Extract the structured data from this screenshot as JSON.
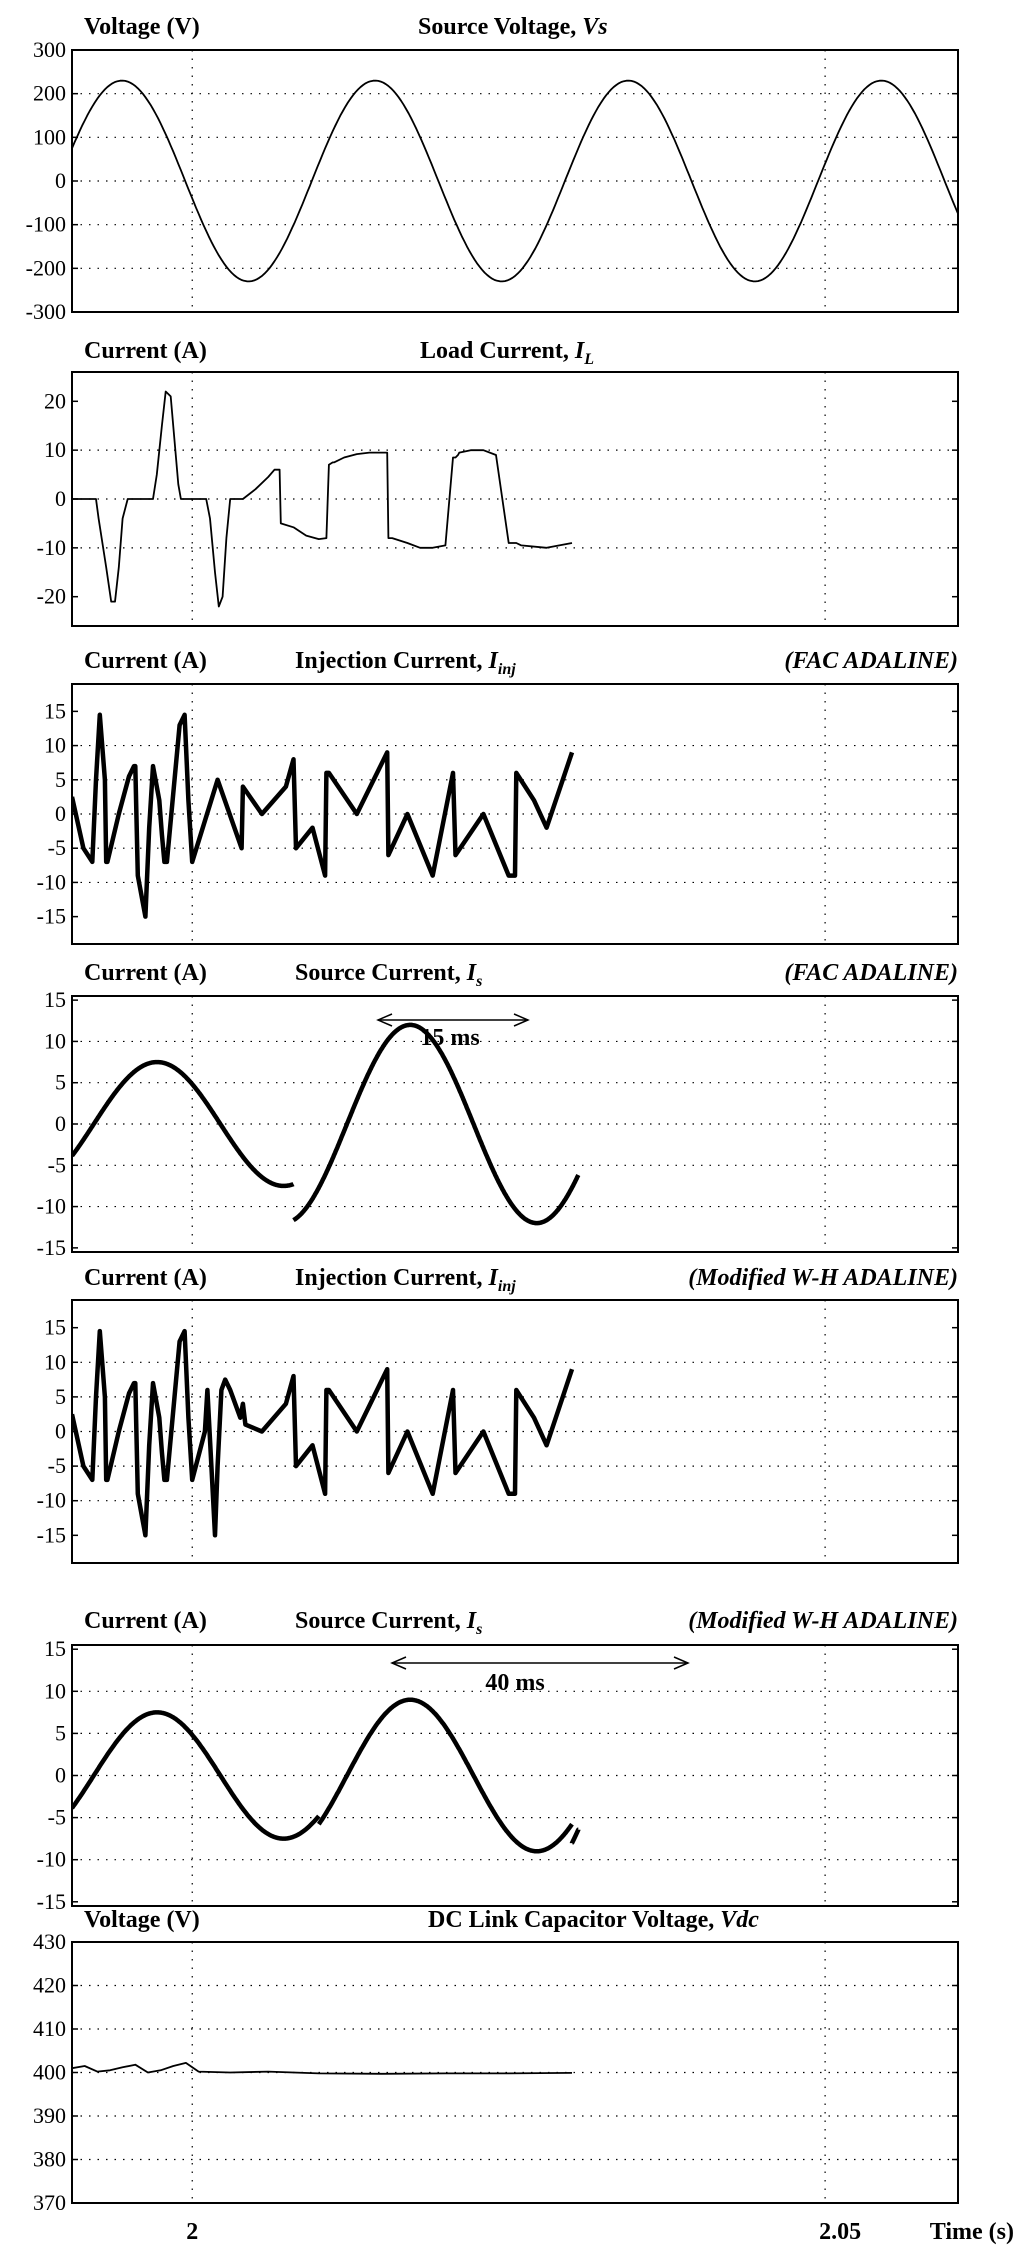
{
  "chart_data": [
    {
      "type": "line",
      "ylabel": "Voltage (V)",
      "title": "Source Voltage, ",
      "title_symbol": "Vs",
      "title_sub": "",
      "method": "",
      "yticks": [
        "300",
        "200",
        "100",
        "0",
        "-100",
        "-200",
        "-300"
      ],
      "ylim": [
        -300,
        300
      ],
      "xlim": [
        1.9905,
        2.0605
      ],
      "x_grid": [
        2.0,
        2.05
      ],
      "series": [
        {
          "x": [
            1.9905,
            2.0905
          ],
          "sine": {
            "amplitude": 230,
            "freq_hz": 50,
            "phase_deg": 190
          }
        }
      ]
    },
    {
      "type": "line",
      "ylabel": "Current (A)",
      "title": "Load Current, ",
      "title_symbol": "I",
      "title_sub": "L",
      "method": "",
      "yticks": [
        "20",
        "10",
        "0",
        "-10",
        "-20"
      ],
      "ylim": [
        -26,
        26
      ],
      "xlim": [
        1.9905,
        2.0605
      ],
      "x_grid": [
        2.0,
        2.05
      ],
      "series": [
        {
          "x": [
            1.9905,
            1.9924,
            1.9926,
            1.9932,
            1.9936,
            1.9939,
            1.9942,
            1.9945,
            1.9949,
            1.9969,
            1.9972,
            1.9976,
            1.9979,
            1.9983,
            1.9986,
            1.9989,
            1.9991,
            2.0011,
            2.0014,
            2.0018,
            2.0021,
            2.0024,
            2.0027,
            2.003,
            2.004,
            2.005,
            2.006,
            2.0065,
            2.0067,
            2.0069,
            2.007,
            2.008,
            2.009,
            2.01,
            2.0106,
            2.0108,
            2.0111,
            2.0112,
            2.012,
            2.013,
            2.014,
            2.015,
            2.0154,
            2.0155,
            2.0158,
            2.017,
            2.018,
            2.019,
            2.02,
            2.0206,
            2.0208,
            2.021,
            2.0211,
            2.022,
            2.023,
            2.024,
            2.025,
            2.0255,
            2.0256,
            2.026,
            2.028,
            2.03
          ],
          "y": [
            0,
            0,
            -4,
            -14,
            -21,
            -21,
            -14,
            -4,
            0,
            0,
            5,
            15,
            22,
            21,
            12,
            3,
            0,
            0,
            -4,
            -15,
            -22,
            -20,
            -8,
            0,
            0,
            2,
            4.5,
            6,
            6,
            6,
            -5,
            -5.8,
            -7.5,
            -8.2,
            -8,
            7,
            7.5,
            7.5,
            8.5,
            9.2,
            9.5,
            9.5,
            9.5,
            -8,
            -8,
            -9,
            -10,
            -10,
            -9.5,
            8.5,
            8.5,
            9,
            9.5,
            10,
            10,
            9,
            -9,
            -9,
            -9,
            -9.5,
            -10,
            -9
          ]
        }
      ]
    },
    {
      "type": "line",
      "ylabel": "Current (A)",
      "title": "Injection Current, ",
      "title_symbol": "I",
      "title_sub": "inj",
      "method": "(FAC ADALINE)",
      "yticks": [
        "15",
        "10",
        "5",
        "0",
        "-5",
        "-10",
        "-15"
      ],
      "ylim": [
        -19,
        19
      ],
      "xlim": [
        1.9905,
        2.0605
      ],
      "x_grid": [
        2.0,
        2.05
      ],
      "series": [
        {
          "x": [
            1.9905,
            1.9914,
            1.9921,
            1.9924,
            1.9927,
            1.9931,
            1.9932,
            1.9933,
            1.9942,
            1.995,
            1.9954,
            1.9955,
            1.9957,
            1.9963,
            1.9966,
            1.9969,
            1.9974,
            1.9976,
            1.9978,
            1.998,
            1.999,
            1.9994,
            1.9997,
            2.0,
            2.002,
            2.0039,
            2.004,
            2.0055,
            2.0074,
            2.008,
            2.0082,
            2.0095,
            2.0105,
            2.0106,
            2.0108,
            2.013,
            2.0154,
            2.0155,
            2.017,
            2.019,
            2.0206,
            2.0208,
            2.023,
            2.025,
            2.0255,
            2.0256,
            2.027,
            2.028,
            2.03
          ],
          "y": [
            2.5,
            -5,
            -7,
            5,
            14.5,
            5,
            -7,
            -7,
            0,
            5.5,
            7,
            7,
            -9,
            -15,
            -2,
            7,
            2,
            -3,
            -7,
            -7,
            13,
            14.5,
            2,
            -7,
            5,
            -5,
            4,
            0,
            4,
            8,
            -5,
            -2,
            -9,
            6,
            6,
            0,
            9,
            -6,
            0,
            -9,
            6,
            -6,
            0,
            -9,
            -9,
            6,
            2,
            -2,
            9
          ]
        }
      ]
    },
    {
      "type": "line",
      "ylabel": "Current (A)",
      "title": "Source Current, ",
      "title_symbol": "I",
      "title_sub": "s",
      "method": "(FAC ADALINE)",
      "annotation": "15 ms",
      "yticks": [
        "15",
        "10",
        "5",
        "0",
        "-5",
        "-10",
        "-15"
      ],
      "ylim": [
        -15.5,
        15.5
      ],
      "xlim": [
        1.9905,
        2.0605
      ],
      "x_grid": [
        2.0,
        2.05
      ],
      "series": [
        {
          "x": [
            1.9905,
            2.008
          ],
          "sine": {
            "amplitude": 7.5,
            "freq_hz": 50,
            "phase_deg": 140
          }
        },
        {
          "x": [
            2.008,
            2.0305
          ],
          "sine": {
            "amplitude": 12,
            "freq_hz": 50,
            "phase_deg": 140
          }
        }
      ]
    },
    {
      "type": "line",
      "ylabel": "Current (A)",
      "title": "Injection Current, ",
      "title_symbol": "I",
      "title_sub": "inj",
      "method": "(Modified W-H ADALINE)",
      "yticks": [
        "15",
        "10",
        "5",
        "0",
        "-5",
        "-10",
        "-15"
      ],
      "ylim": [
        -19,
        19
      ],
      "xlim": [
        1.9905,
        2.0605
      ],
      "x_grid": [
        2.0,
        2.05
      ],
      "series": [
        {
          "x": [
            1.9905,
            1.9914,
            1.9921,
            1.9924,
            1.9927,
            1.9931,
            1.9932,
            1.9933,
            1.9942,
            1.995,
            1.9954,
            1.9955,
            1.9957,
            1.9963,
            1.9966,
            1.9969,
            1.9974,
            1.9976,
            1.9978,
            1.998,
            1.999,
            1.9994,
            1.9997,
            2.0,
            2.001,
            2.0012,
            2.0018,
            2.002,
            2.0023,
            2.0026,
            2.003,
            2.0038,
            2.004,
            2.0042,
            2.0055,
            2.0074,
            2.008,
            2.0082,
            2.0095,
            2.0105,
            2.0106,
            2.0108,
            2.013,
            2.0154,
            2.0155,
            2.017,
            2.019,
            2.0206,
            2.0208,
            2.023,
            2.025,
            2.0255,
            2.0256,
            2.027,
            2.028,
            2.03
          ],
          "y": [
            2.5,
            -5,
            -7,
            5,
            14.5,
            5,
            -7,
            -7,
            0,
            5.5,
            7,
            7,
            -9,
            -15,
            -2,
            7,
            2,
            -3,
            -7,
            -7,
            13,
            14.5,
            2,
            -7,
            0,
            6,
            -15,
            -5,
            6,
            7.5,
            6,
            2,
            4,
            1,
            0,
            4,
            8,
            -5,
            -2,
            -9,
            6,
            6,
            0,
            9,
            -6,
            0,
            -9,
            6,
            -6,
            0,
            -9,
            -9,
            6,
            2,
            -2,
            9
          ]
        }
      ]
    },
    {
      "type": "line",
      "ylabel": "Current (A)",
      "title": "Source Current, ",
      "title_symbol": "I",
      "title_sub": "s",
      "method": "(Modified W-H ADALINE)",
      "annotation": "40 ms",
      "yticks": [
        "15",
        "10",
        "5",
        "0",
        "-5",
        "-10",
        "-15"
      ],
      "ylim": [
        -15.5,
        15.5
      ],
      "xlim": [
        1.9905,
        2.0605
      ],
      "x_grid": [
        2.0,
        2.05
      ],
      "series": [
        {
          "x": [
            1.9905,
            2.01
          ],
          "sine": {
            "amplitude": 7.5,
            "freq_hz": 50,
            "phase_deg": 140
          }
        },
        {
          "x": [
            2.01,
            2.03
          ],
          "sine": {
            "amplitude": 9,
            "freq_hz": 50,
            "phase_deg": 140
          }
        },
        {
          "x": [
            2.03,
            2.0305
          ],
          "sine": {
            "amplitude": 12.5,
            "freq_hz": 50,
            "phase_deg": 140
          }
        }
      ]
    },
    {
      "type": "line",
      "ylabel": "Voltage (V)",
      "title": "DC Link Capacitor Voltage, ",
      "title_symbol": "Vdc",
      "title_sub": "",
      "method": "",
      "yticks": [
        "430",
        "420",
        "410",
        "400",
        "390",
        "380",
        "370"
      ],
      "ylim": [
        370,
        430
      ],
      "xlim": [
        1.9905,
        2.0605
      ],
      "x_grid": [
        2.0,
        2.05
      ],
      "xticks": [
        "2",
        "2.05"
      ],
      "xlabel": "Time (s)",
      "series": [
        {
          "x": [
            1.9905,
            1.9915,
            1.9925,
            1.9935,
            1.9945,
            1.9955,
            1.9965,
            1.9975,
            1.9985,
            1.9995,
            2.0005,
            2.003,
            2.006,
            2.01,
            2.015,
            2.02,
            2.025,
            2.03
          ],
          "y": [
            401,
            401.5,
            400.2,
            400.5,
            401.2,
            401.8,
            400,
            400.5,
            401.5,
            402.2,
            400.2,
            400,
            400.2,
            399.8,
            399.7,
            399.8,
            399.8,
            399.9
          ]
        }
      ]
    }
  ]
}
